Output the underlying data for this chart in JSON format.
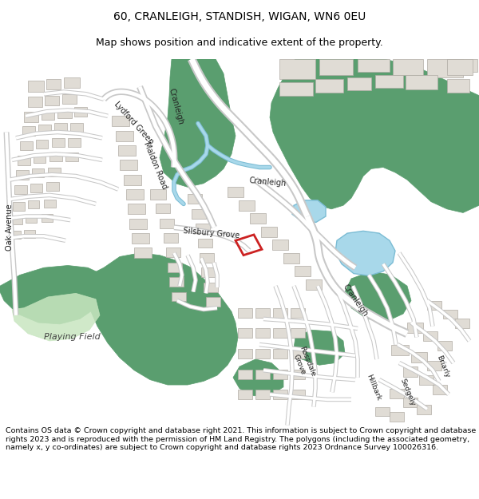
{
  "title_line1": "60, CRANLEIGH, STANDISH, WIGAN, WN6 0EU",
  "title_line2": "Map shows position and indicative extent of the property.",
  "footer_text": "Contains OS data © Crown copyright and database right 2021. This information is subject to Crown copyright and database rights 2023 and is reproduced with the permission of HM Land Registry. The polygons (including the associated geometry, namely x, y co-ordinates) are subject to Crown copyright and database rights 2023 Ordnance Survey 100026316.",
  "map_bg": "#ffffff",
  "green_dark": "#5a9e6f",
  "green_light": "#c8e6c0",
  "road_fill": "#ffffff",
  "road_outline": "#c8c8c8",
  "building_fill": "#e0dcd5",
  "building_outline": "#b0aca5",
  "water_fill": "#a8d8ea",
  "water_line": "#7bbcd4",
  "plot_color": "#cc2222",
  "title_fontsize": 10,
  "subtitle_fontsize": 9,
  "footer_fontsize": 6.8,
  "fig_width": 6.0,
  "fig_height": 6.25
}
